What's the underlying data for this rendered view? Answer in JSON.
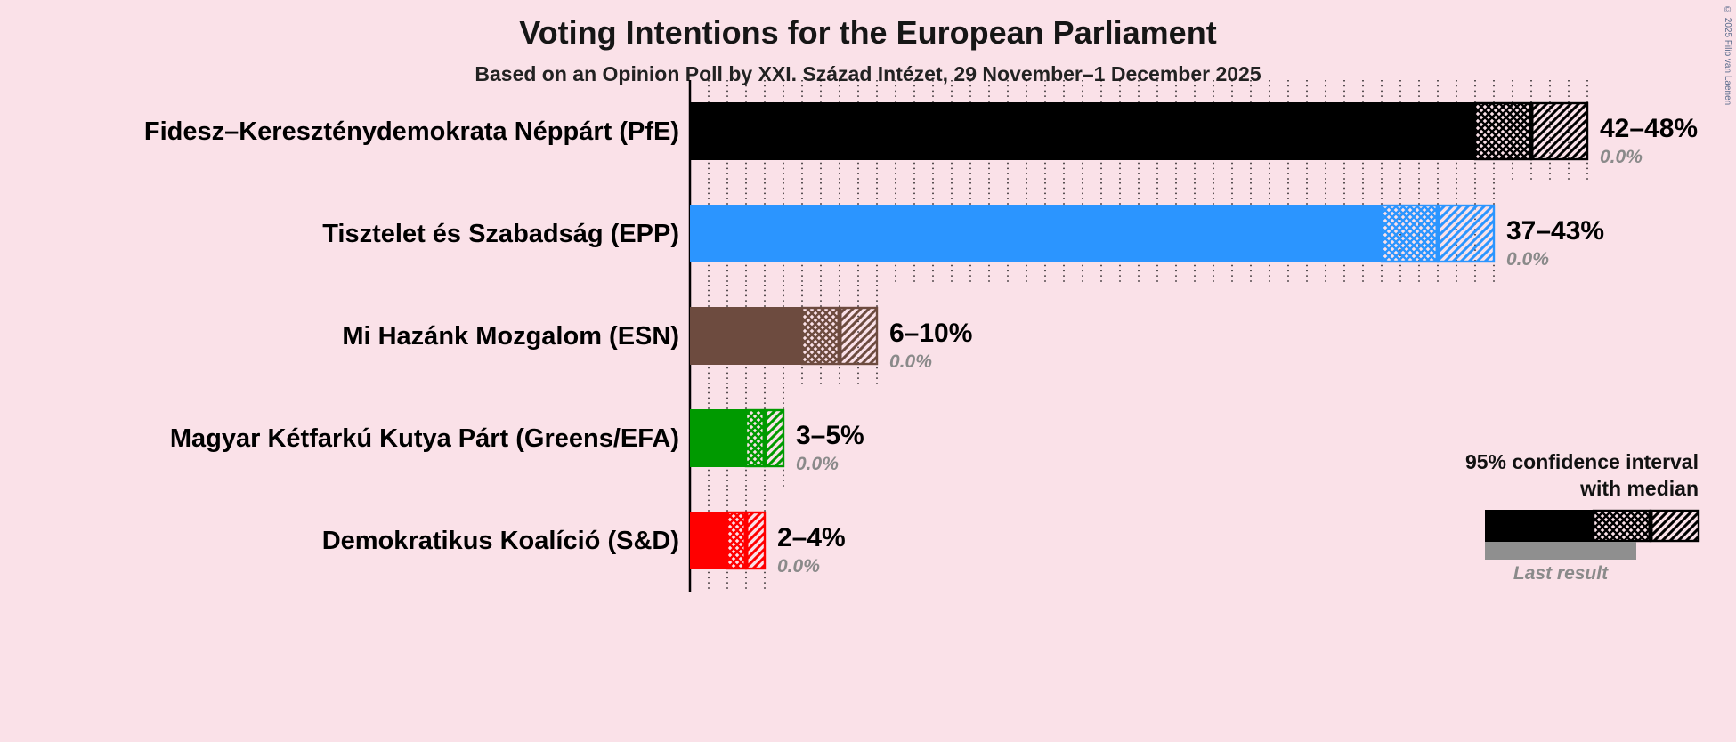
{
  "copyright": "© 2025 Filip van Laenen",
  "background_color": "#fae1e8",
  "chart_data": {
    "type": "bar",
    "orientation": "horizontal",
    "title": "Voting Intentions for the European Parliament",
    "subtitle": "Based on an Opinion Poll by XXI. Század Intézet, 29 November–1 December 2025",
    "unit": "percent",
    "x_axis": {
      "min": 0,
      "max": 48,
      "gridline_step": 1,
      "gridlines": "dotted",
      "tick_labels_visible": false
    },
    "legend": {
      "position": "bottom-right",
      "ci_line1": "95% confidence interval",
      "ci_line2": "with median",
      "last_result": "Last result",
      "last_result_bar_color": "#8f8f8f"
    },
    "parties": [
      {
        "name": "Fidesz–Kereszténydemokrata Néppárt (PfE)",
        "color": "#000000",
        "ci_low": 42,
        "median": 45,
        "ci_high": 48,
        "range_label": "42–48%",
        "last_result_label": "0.0%",
        "last_result": 0.0
      },
      {
        "name": "Tisztelet és Szabadság (EPP)",
        "color": "#2b95ff",
        "ci_low": 37,
        "median": 40,
        "ci_high": 43,
        "range_label": "37–43%",
        "last_result_label": "0.0%",
        "last_result": 0.0
      },
      {
        "name": "Mi Hazánk Mozgalom (ESN)",
        "color": "#6d4b3f",
        "ci_low": 6,
        "median": 8,
        "ci_high": 10,
        "range_label": "6–10%",
        "last_result_label": "0.0%",
        "last_result": 0.0
      },
      {
        "name": "Magyar Kétfarkú Kutya Párt (Greens/EFA)",
        "color": "#009a00",
        "ci_low": 3,
        "median": 4,
        "ci_high": 5,
        "range_label": "3–5%",
        "last_result_label": "0.0%",
        "last_result": 0.0
      },
      {
        "name": "Demokratikus Koalíció (S&D)",
        "color": "#ff0000",
        "ci_low": 2,
        "median": 3,
        "ci_high": 4,
        "range_label": "2–4%",
        "last_result_label": "0.0%",
        "last_result": 0.0
      }
    ]
  }
}
